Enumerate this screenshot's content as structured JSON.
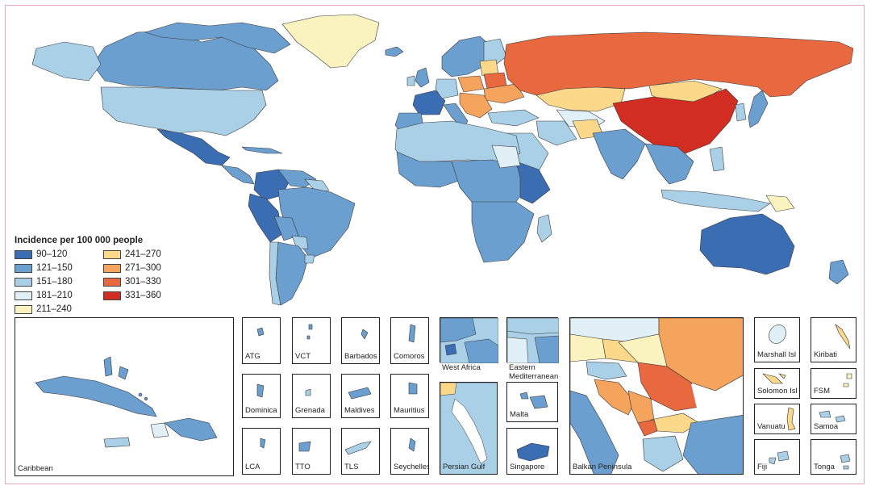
{
  "legend": {
    "title": "Incidence per 100 000 people",
    "bins": [
      {
        "label": "90–120",
        "color": "#3b6db3"
      },
      {
        "label": "121–150",
        "color": "#6b9fcf"
      },
      {
        "label": "151–180",
        "color": "#a9d0e6"
      },
      {
        "label": "181–210",
        "color": "#e1f0f7"
      },
      {
        "label": "211–240",
        "color": "#fbf3bf"
      },
      {
        "label": "241–270",
        "color": "#fbd88a"
      },
      {
        "label": "271–300",
        "color": "#f5a45e"
      },
      {
        "label": "301–330",
        "color": "#e8683f"
      },
      {
        "label": "331–360",
        "color": "#d22d23"
      }
    ]
  },
  "insets": {
    "caribbean": "Caribbean",
    "atg": "ATG",
    "vct": "VCT",
    "barbados": "Barbados",
    "comoros": "Comoros",
    "dominica": "Dominica",
    "grenada": "Grenada",
    "maldives": "Maldives",
    "mauritius": "Mauritius",
    "lca": "LCA",
    "tto": "TTO",
    "tls": "TLS",
    "seychelles": "Seychelles",
    "west_africa": "West Africa",
    "eastern_med": "Eastern Mediterranean",
    "persian_gulf": "Persian Gulf",
    "malta": "Malta",
    "singapore": "Singapore",
    "balkan": "Balkan Peninsula",
    "marshall": "Marshall Isl",
    "kiribati": "Kiribati",
    "solomon": "Solomon Isl",
    "fsm": "FSM",
    "vanuatu": "Vanuatu",
    "samoa": "Samoa",
    "fiji": "Fiji",
    "tonga": "Tonga"
  }
}
